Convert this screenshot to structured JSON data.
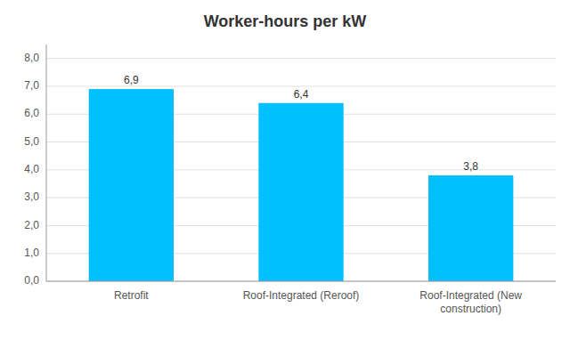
{
  "chart_data": {
    "type": "bar",
    "title": "Worker-hours per kW",
    "categories": [
      "Retrofit",
      "Roof-Integrated (Reroof)",
      "Roof-Integrated (New\nconstruction)"
    ],
    "values": [
      6.9,
      6.4,
      3.8
    ],
    "value_labels": [
      "6,9",
      "6,4",
      "3,8"
    ],
    "color": "#00BFFF",
    "ylim": [
      0,
      8.5
    ],
    "yticks": [
      {
        "value": 0.0,
        "label": "0,0"
      },
      {
        "value": 1.0,
        "label": "1,0"
      },
      {
        "value": 2.0,
        "label": "2,0"
      },
      {
        "value": 3.0,
        "label": "3,0"
      },
      {
        "value": 4.0,
        "label": "4,0"
      },
      {
        "value": 5.0,
        "label": "5,0"
      },
      {
        "value": 6.0,
        "label": "6,0"
      },
      {
        "value": 7.0,
        "label": "7,0"
      },
      {
        "value": 8.0,
        "label": "8,0"
      }
    ],
    "grid": true
  }
}
